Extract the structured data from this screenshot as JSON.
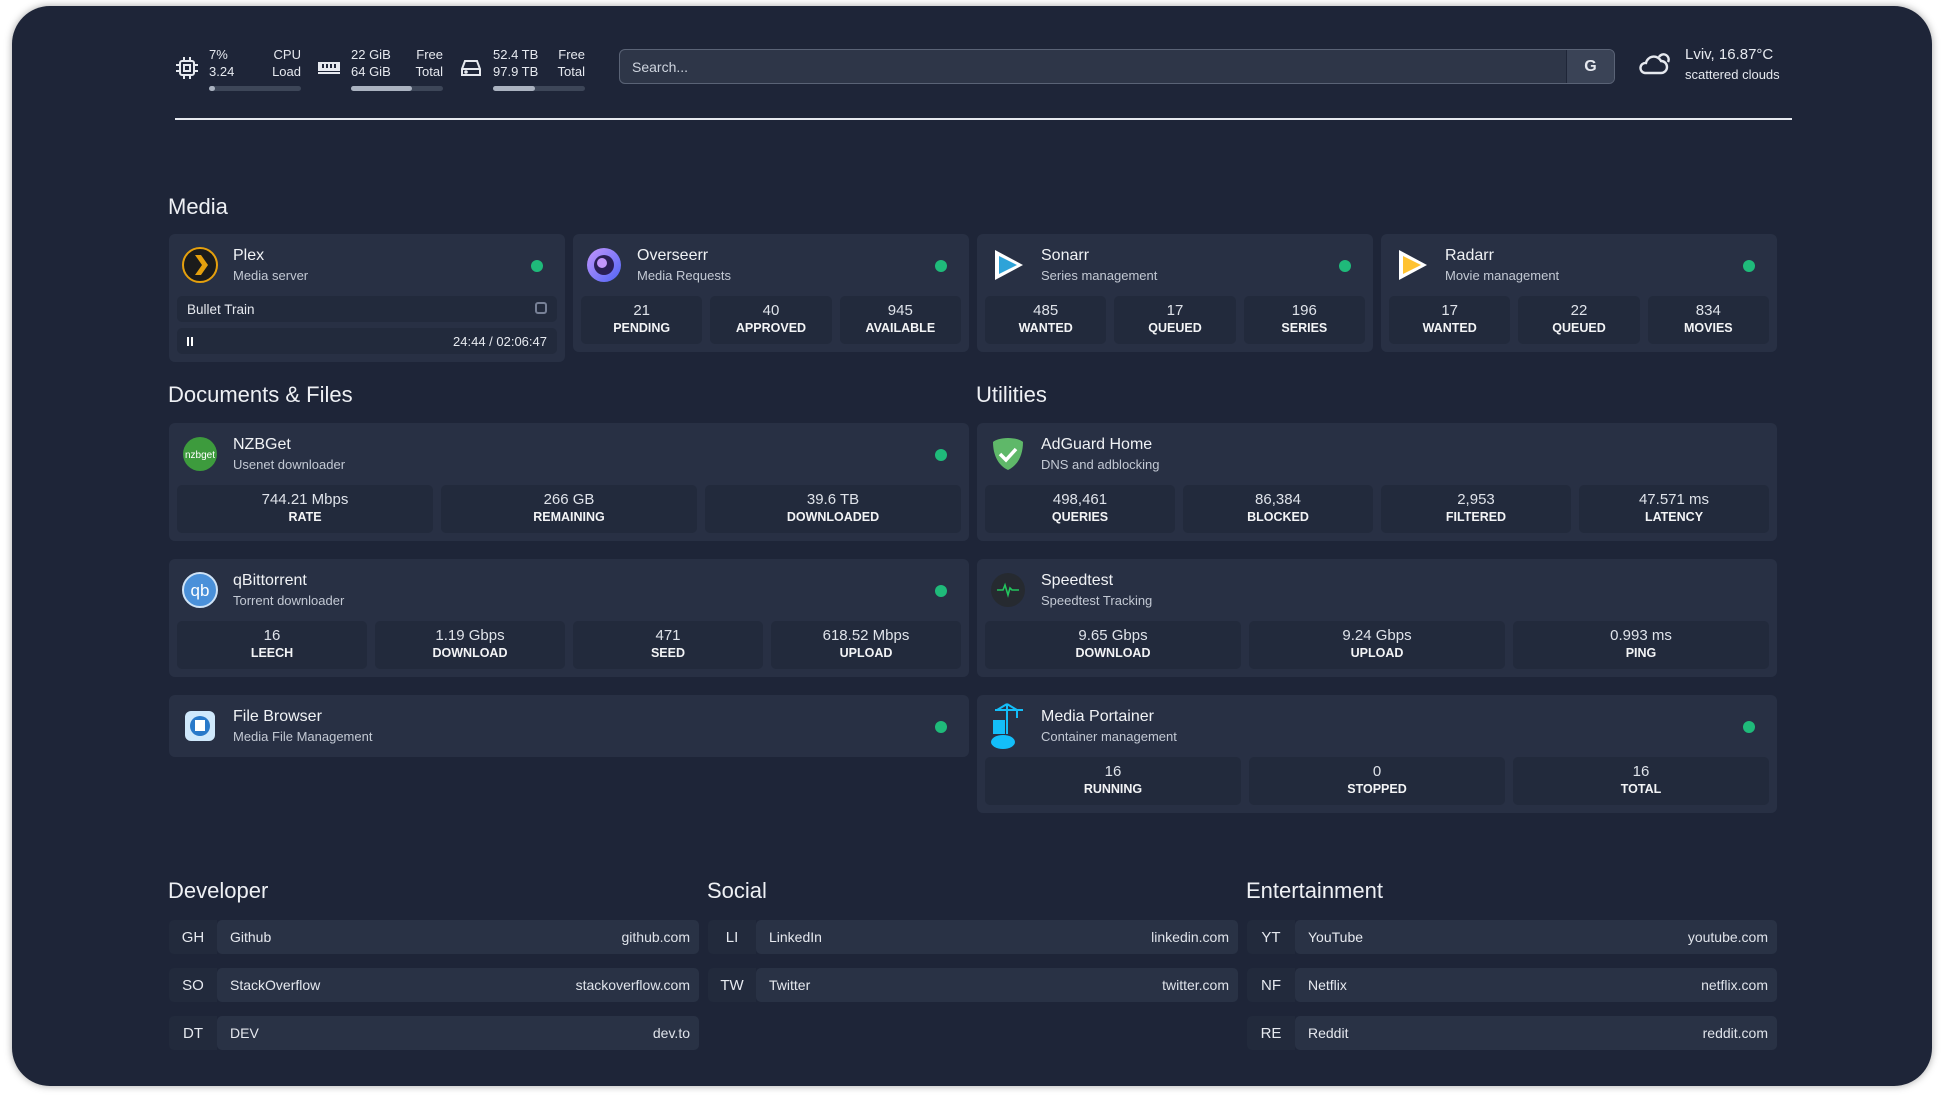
{
  "topbar": {
    "cpu": {
      "icon": "cpu-icon",
      "value1": "7%",
      "value2": "3.24",
      "label1": "CPU",
      "label2": "Load",
      "usage_percent": 7
    },
    "memory": {
      "icon": "memory-icon",
      "value1": "22 GiB",
      "value2": "64 GiB",
      "label1": "Free",
      "label2": "Total",
      "usage_percent": 66
    },
    "disk": {
      "icon": "disk-icon",
      "value1": "52.4 TB",
      "value2": "97.9 TB",
      "label1": "Free",
      "label2": "Total",
      "usage_percent": 46
    },
    "search": {
      "placeholder": "Search...",
      "button": "G"
    },
    "weather": {
      "icon": "cloud-sun-icon",
      "location_temp": "Lviv, 16.87°C",
      "condition": "scattered clouds"
    }
  },
  "colors": {
    "background": "#1e2538",
    "card": "#283044",
    "stat": "#222a3c",
    "status_ok": "#1fba7a"
  },
  "sections": {
    "media": "Media",
    "documents": "Documents & Files",
    "utilities": "Utilities",
    "developer": "Developer",
    "social": "Social",
    "entertainment": "Entertainment"
  },
  "media": [
    {
      "title": "Plex",
      "subtitle": "Media server",
      "icon": "plex-icon",
      "now_playing": {
        "title": "Bullet Train",
        "time": "24:44 / 02:06:47",
        "progress_percent": 20
      }
    },
    {
      "title": "Overseerr",
      "subtitle": "Media Requests",
      "icon": "overseerr-icon",
      "stats": [
        {
          "v": "21",
          "k": "PENDING"
        },
        {
          "v": "40",
          "k": "APPROVED"
        },
        {
          "v": "945",
          "k": "AVAILABLE"
        }
      ]
    },
    {
      "title": "Sonarr",
      "subtitle": "Series management",
      "icon": "sonarr-icon",
      "stats": [
        {
          "v": "485",
          "k": "WANTED"
        },
        {
          "v": "17",
          "k": "QUEUED"
        },
        {
          "v": "196",
          "k": "SERIES"
        }
      ]
    },
    {
      "title": "Radarr",
      "subtitle": "Movie management",
      "icon": "radarr-icon",
      "stats": [
        {
          "v": "17",
          "k": "WANTED"
        },
        {
          "v": "22",
          "k": "QUEUED"
        },
        {
          "v": "834",
          "k": "MOVIES"
        }
      ]
    }
  ],
  "documents": [
    {
      "title": "NZBGet",
      "subtitle": "Usenet downloader",
      "icon": "nzbget-icon",
      "stats": [
        {
          "v": "744.21 Mbps",
          "k": "RATE"
        },
        {
          "v": "266 GB",
          "k": "REMAINING"
        },
        {
          "v": "39.6 TB",
          "k": "DOWNLOADED"
        }
      ]
    },
    {
      "title": "qBittorrent",
      "subtitle": "Torrent downloader",
      "icon": "qbittorrent-icon",
      "stats": [
        {
          "v": "16",
          "k": "LEECH"
        },
        {
          "v": "1.19 Gbps",
          "k": "DOWNLOAD"
        },
        {
          "v": "471",
          "k": "SEED"
        },
        {
          "v": "618.52 Mbps",
          "k": "UPLOAD"
        }
      ]
    },
    {
      "title": "File Browser",
      "subtitle": "Media File Management",
      "icon": "file-browser-icon",
      "stats": []
    }
  ],
  "utilities": [
    {
      "title": "AdGuard Home",
      "subtitle": "DNS and adblocking",
      "icon": "adguard-icon",
      "status": false,
      "stats": [
        {
          "v": "498,461",
          "k": "QUERIES"
        },
        {
          "v": "86,384",
          "k": "BLOCKED"
        },
        {
          "v": "2,953",
          "k": "FILTERED"
        },
        {
          "v": "47.571 ms",
          "k": "LATENCY"
        }
      ]
    },
    {
      "title": "Speedtest",
      "subtitle": "Speedtest Tracking",
      "icon": "speedtest-icon",
      "status": false,
      "stats": [
        {
          "v": "9.65 Gbps",
          "k": "DOWNLOAD"
        },
        {
          "v": "9.24 Gbps",
          "k": "UPLOAD"
        },
        {
          "v": "0.993 ms",
          "k": "PING"
        }
      ]
    },
    {
      "title": "Media Portainer",
      "subtitle": "Container management",
      "icon": "portainer-icon",
      "status": true,
      "stats": [
        {
          "v": "16",
          "k": "RUNNING"
        },
        {
          "v": "0",
          "k": "STOPPED"
        },
        {
          "v": "16",
          "k": "TOTAL"
        }
      ]
    }
  ],
  "bookmarks": {
    "developer": [
      {
        "abbr": "GH",
        "name": "Github",
        "url": "github.com"
      },
      {
        "abbr": "SO",
        "name": "StackOverflow",
        "url": "stackoverflow.com"
      },
      {
        "abbr": "DT",
        "name": "DEV",
        "url": "dev.to"
      }
    ],
    "social": [
      {
        "abbr": "LI",
        "name": "LinkedIn",
        "url": "linkedin.com"
      },
      {
        "abbr": "TW",
        "name": "Twitter",
        "url": "twitter.com"
      }
    ],
    "entertainment": [
      {
        "abbr": "YT",
        "name": "YouTube",
        "url": "youtube.com"
      },
      {
        "abbr": "NF",
        "name": "Netflix",
        "url": "netflix.com"
      },
      {
        "abbr": "RE",
        "name": "Reddit",
        "url": "reddit.com"
      }
    ]
  }
}
